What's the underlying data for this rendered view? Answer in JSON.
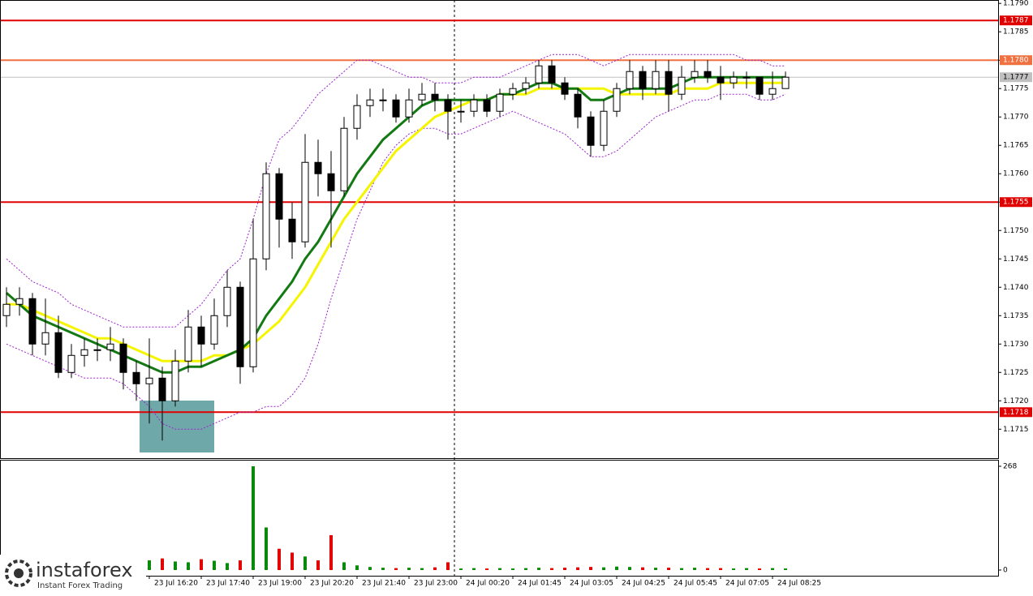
{
  "chart_data": [
    {
      "type": "candlestick",
      "open": [
        1.1735,
        1.1737,
        1.1738,
        1.173,
        1.1732,
        1.1725,
        1.1728,
        1.1729,
        1.1729,
        1.173,
        1.1725,
        1.1723,
        1.1724,
        1.172,
        1.1727,
        1.1733,
        1.173,
        1.1735,
        1.174,
        1.1726,
        1.1745,
        1.176,
        1.1752,
        1.1748,
        1.1762,
        1.176,
        1.1757,
        1.1768,
        1.1772,
        1.1773,
        1.1773,
        1.177,
        1.1773,
        1.1774,
        1.1773,
        1.1771,
        1.1771,
        1.1773,
        1.1771,
        1.1774,
        1.1775,
        1.1776,
        1.1779,
        1.1776,
        1.1774,
        1.177,
        1.1765,
        1.1771,
        1.1775,
        1.1778,
        1.1775,
        1.1778,
        1.1774,
        1.1777,
        1.1778,
        1.1777,
        1.1776,
        1.1777,
        1.1777,
        1.1774,
        1.1775
      ],
      "high": [
        1.174,
        1.174,
        1.1739,
        1.1738,
        1.1735,
        1.173,
        1.1731,
        1.1731,
        1.1733,
        1.1731,
        1.1727,
        1.1731,
        1.1726,
        1.1729,
        1.1736,
        1.1735,
        1.1738,
        1.1743,
        1.1741,
        1.1752,
        1.1762,
        1.1761,
        1.1755,
        1.1767,
        1.1766,
        1.1764,
        1.177,
        1.1774,
        1.1775,
        1.1775,
        1.1774,
        1.1775,
        1.1776,
        1.1776,
        1.1774,
        1.1773,
        1.1774,
        1.1774,
        1.1775,
        1.1776,
        1.1777,
        1.178,
        1.178,
        1.1777,
        1.1775,
        1.1771,
        1.1773,
        1.1776,
        1.178,
        1.1779,
        1.178,
        1.178,
        1.1779,
        1.178,
        1.178,
        1.1779,
        1.1778,
        1.1778,
        1.1777,
        1.1778,
        1.1778
      ],
      "low": [
        1.1733,
        1.1735,
        1.1728,
        1.1728,
        1.1724,
        1.1724,
        1.1726,
        1.1727,
        1.1727,
        1.1722,
        1.172,
        1.1716,
        1.1713,
        1.1719,
        1.1725,
        1.1726,
        1.1729,
        1.1733,
        1.1723,
        1.1725,
        1.1743,
        1.1747,
        1.1745,
        1.1747,
        1.1756,
        1.1747,
        1.1756,
        1.1766,
        1.177,
        1.1771,
        1.1769,
        1.1769,
        1.1772,
        1.1771,
        1.1766,
        1.1769,
        1.177,
        1.177,
        1.177,
        1.1773,
        1.1774,
        1.1775,
        1.1775,
        1.1773,
        1.1768,
        1.1763,
        1.1764,
        1.177,
        1.1774,
        1.1773,
        1.1774,
        1.1771,
        1.1773,
        1.1776,
        1.1776,
        1.1773,
        1.1775,
        1.1775,
        1.1773,
        1.1773,
        1.1775
      ],
      "close": [
        1.1737,
        1.1738,
        1.173,
        1.1732,
        1.1725,
        1.1728,
        1.1729,
        1.1729,
        1.173,
        1.1725,
        1.1723,
        1.1724,
        1.172,
        1.1727,
        1.1733,
        1.173,
        1.1735,
        1.174,
        1.1726,
        1.1745,
        1.176,
        1.1752,
        1.1748,
        1.1762,
        1.176,
        1.1757,
        1.1768,
        1.1772,
        1.1773,
        1.1773,
        1.177,
        1.1773,
        1.1774,
        1.1773,
        1.1771,
        1.1771,
        1.1773,
        1.1771,
        1.1774,
        1.1775,
        1.1776,
        1.1779,
        1.1776,
        1.1774,
        1.177,
        1.1765,
        1.1771,
        1.1775,
        1.1778,
        1.1775,
        1.1778,
        1.1774,
        1.1777,
        1.1778,
        1.1777,
        1.1776,
        1.1777,
        1.1777,
        1.1774,
        1.1775,
        1.1777
      ],
      "series": [
        {
          "color": "#a020d0",
          "style": "dotted",
          "values": [
            1.1745,
            1.1743,
            1.1741,
            1.174,
            1.1739,
            1.1737,
            1.1736,
            1.1735,
            1.1734,
            1.1733,
            1.1733,
            1.1733,
            1.1733,
            1.1733,
            1.1735,
            1.1737,
            1.174,
            1.1743,
            1.1745,
            1.1752,
            1.176,
            1.1766,
            1.1768,
            1.1771,
            1.1774,
            1.1776,
            1.1778,
            1.178,
            1.178,
            1.1779,
            1.1778,
            1.1777,
            1.1777,
            1.1776,
            1.1776,
            1.1776,
            1.1777,
            1.1777,
            1.1777,
            1.1778,
            1.1779,
            1.178,
            1.1781,
            1.1781,
            1.1781,
            1.178,
            1.1779,
            1.178,
            1.1781,
            1.1781,
            1.1781,
            1.1781,
            1.1781,
            1.1781,
            1.1781,
            1.1781,
            1.1781,
            1.178,
            1.178,
            1.1779,
            1.1779
          ]
        },
        {
          "color": "#a020d0",
          "style": "dotted",
          "values": [
            1.173,
            1.1729,
            1.1728,
            1.1727,
            1.1726,
            1.1725,
            1.1724,
            1.1724,
            1.1724,
            1.1723,
            1.1721,
            1.1719,
            1.1716,
            1.1715,
            1.1715,
            1.1715,
            1.1716,
            1.1717,
            1.1718,
            1.1718,
            1.1719,
            1.1719,
            1.1721,
            1.1724,
            1.173,
            1.1738,
            1.1745,
            1.1752,
            1.1757,
            1.1762,
            1.1765,
            1.1767,
            1.1768,
            1.1768,
            1.1767,
            1.1767,
            1.1768,
            1.1769,
            1.177,
            1.1771,
            1.177,
            1.1769,
            1.1768,
            1.1767,
            1.1765,
            1.1763,
            1.1763,
            1.1764,
            1.1766,
            1.1768,
            1.177,
            1.1771,
            1.1772,
            1.1773,
            1.1773,
            1.1774,
            1.1774,
            1.1774,
            1.1773,
            1.1773,
            1.1774
          ]
        },
        {
          "color": "#f5f500",
          "style": "solid",
          "values": [
            1.1737,
            1.1737,
            1.1736,
            1.1735,
            1.1734,
            1.1733,
            1.1732,
            1.1731,
            1.1731,
            1.173,
            1.1729,
            1.1728,
            1.1727,
            1.1727,
            1.1727,
            1.1727,
            1.1728,
            1.1728,
            1.1729,
            1.173,
            1.1732,
            1.1734,
            1.1737,
            1.174,
            1.1744,
            1.1748,
            1.1752,
            1.1755,
            1.1758,
            1.1761,
            1.1764,
            1.1766,
            1.1768,
            1.177,
            1.1771,
            1.1772,
            1.1773,
            1.1773,
            1.1774,
            1.1774,
            1.1774,
            1.1775,
            1.1775,
            1.1775,
            1.1775,
            1.1775,
            1.1775,
            1.1774,
            1.1774,
            1.1774,
            1.1774,
            1.1774,
            1.1775,
            1.1775,
            1.1775,
            1.1776,
            1.1776,
            1.1776,
            1.1776,
            1.1776,
            1.1776
          ]
        },
        {
          "color": "#137a13",
          "style": "solid",
          "values": [
            1.1739,
            1.1737,
            1.1735,
            1.1734,
            1.1733,
            1.1732,
            1.1731,
            1.173,
            1.1729,
            1.1728,
            1.1727,
            1.1726,
            1.1725,
            1.1725,
            1.1726,
            1.1726,
            1.1727,
            1.1728,
            1.1729,
            1.1731,
            1.1735,
            1.1738,
            1.1741,
            1.1745,
            1.1748,
            1.1752,
            1.1756,
            1.176,
            1.1763,
            1.1766,
            1.1768,
            1.177,
            1.1772,
            1.1773,
            1.1773,
            1.1773,
            1.1773,
            1.1773,
            1.1774,
            1.1774,
            1.1775,
            1.1776,
            1.1776,
            1.1775,
            1.1775,
            1.1773,
            1.1773,
            1.1774,
            1.1775,
            1.1775,
            1.1775,
            1.1775,
            1.1776,
            1.1777,
            1.1777,
            1.1777,
            1.1777,
            1.1777,
            1.1777,
            1.1777,
            1.1777
          ]
        }
      ],
      "levels": [
        {
          "value": 1.1787,
          "label": "1.1787",
          "color": "#e00000"
        },
        {
          "value": 1.178,
          "label": "1.1780",
          "color": "#f07040"
        },
        {
          "value": 1.1777,
          "label": "1.1777",
          "color": "#c0c0c0"
        },
        {
          "value": 1.1755,
          "label": "1.1755",
          "color": "#e00000"
        },
        {
          "value": 1.1718,
          "label": "1.1718",
          "color": "#e00000"
        }
      ],
      "ylim": [
        1.17099,
        1.17906
      ],
      "yticks": [
        {
          "value": 1.179,
          "label": "1.1790"
        },
        1.1785,
        {
          "value": 1.178,
          "label": "1.1780"
        },
        1.1775,
        {
          "value": 1.177,
          "label": "1.1770"
        },
        1.1765,
        {
          "value": 1.176,
          "label": "1.1760"
        },
        1.1755,
        {
          "value": 1.175,
          "label": "1.1750"
        },
        1.1745,
        {
          "value": 1.174,
          "label": "1.1740"
        },
        1.1735,
        {
          "value": 1.173,
          "label": "1.1730"
        },
        1.1725,
        {
          "value": 1.172,
          "label": "1.1720"
        },
        1.1715
      ],
      "xlim": [
        -0.5,
        76.375
      ],
      "xticks": [
        {
          "value": 11,
          "label": "23 Jul 16:20"
        },
        {
          "value": 15,
          "label": "23 Jul 17:40"
        },
        {
          "value": 19,
          "label": "23 Jul 19:00"
        },
        {
          "value": 23,
          "label": "23 Jul 20:20"
        },
        {
          "value": 27,
          "label": "23 Jul 21:40"
        },
        {
          "value": 31,
          "label": "23 Jul 23:00"
        },
        {
          "value": 35,
          "label": "24 Jul 00:20"
        },
        {
          "value": 39,
          "label": "24 Jul 01:45"
        },
        {
          "value": 43,
          "label": "24 Jul 03:05"
        },
        {
          "value": 47,
          "label": "24 Jul 04:25"
        },
        {
          "value": 51,
          "label": "24 Jul 05:45"
        },
        {
          "value": 55,
          "label": "24 Jul 07:05"
        },
        {
          "value": 59,
          "label": "24 Jul 08:25"
        }
      ]
    },
    {
      "type": "bar",
      "values": [
        12,
        10,
        14,
        11,
        16,
        12,
        10,
        13,
        11,
        15,
        18,
        25,
        30,
        22,
        20,
        28,
        24,
        18,
        25,
        268,
        110,
        55,
        45,
        35,
        25,
        90,
        20,
        12,
        8,
        6,
        5,
        6,
        5,
        7,
        20,
        4,
        5,
        4,
        5,
        4,
        5,
        6,
        5,
        6,
        7,
        8,
        7,
        9,
        8,
        7,
        6,
        6,
        5,
        6,
        5,
        5,
        4,
        5,
        4,
        5,
        4
      ],
      "up_color": "#0a8a0a",
      "down_color": "#e00000",
      "ylim": [
        -14.7,
        282.7
      ],
      "yticks": [
        268,
        0
      ]
    }
  ],
  "logo": {
    "name": "instaforex",
    "tagline": "Instant Forex Trading"
  }
}
